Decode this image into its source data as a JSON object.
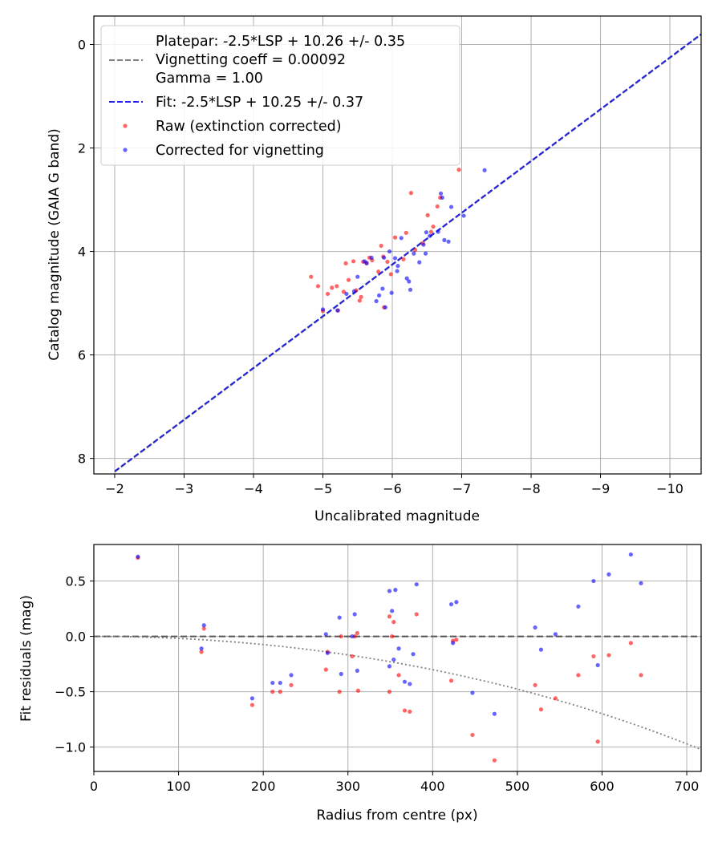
{
  "chart_data": [
    {
      "type": "scatter",
      "xlabel": "Uncalibrated magnitude",
      "ylabel": "Catalog magnitude (GAIA G band)",
      "xlim": [
        -1.7,
        -10.45
      ],
      "ylim": [
        8.3,
        -0.55
      ],
      "x_ticks": [
        -2,
        -3,
        -4,
        -5,
        -6,
        -7,
        -8,
        -9,
        -10
      ],
      "x_tick_labels": [
        "−2",
        "−3",
        "−4",
        "−5",
        "−6",
        "−7",
        "−8",
        "−9",
        "−10"
      ],
      "y_ticks": [
        0,
        2,
        4,
        6,
        8
      ],
      "y_tick_labels": [
        "0",
        "2",
        "4",
        "6",
        "8"
      ],
      "grid": true,
      "legend_position": "top-left",
      "legend": {
        "platepar_text": [
          "Platepar: -2.5*LSP + 10.26 +/- 0.35",
          "Vignetting coeff = 0.00092",
          "Gamma = 1.00"
        ],
        "fit_text": "Fit: -2.5*LSP + 10.25 +/- 0.37",
        "raw_text": "Raw (extinction corrected)",
        "corrected_text": "Corrected for vignetting"
      },
      "lines": [
        {
          "name": "Platepar: -2.5*LSP + 10.26 +/- 0.35",
          "style": "dashed",
          "color": "#808080",
          "intercept": 10.26
        },
        {
          "name": "Fit: -2.5*LSP + 10.25 +/- 0.37",
          "style": "dashed",
          "color": "#2222dd",
          "intercept": 10.25
        }
      ],
      "series": [
        {
          "name": "Raw (extinction corrected)",
          "color": "#ff0000",
          "points": [
            [
              -4.83,
              4.49
            ],
            [
              -4.93,
              4.67
            ],
            [
              -5.0,
              5.15
            ],
            [
              -5.07,
              4.82
            ],
            [
              -5.13,
              4.7
            ],
            [
              -5.2,
              4.67
            ],
            [
              -5.22,
              5.14
            ],
            [
              -5.3,
              4.78
            ],
            [
              -5.33,
              4.23
            ],
            [
              -5.37,
              4.55
            ],
            [
              -5.44,
              4.19
            ],
            [
              -5.48,
              4.75
            ],
            [
              -5.53,
              4.95
            ],
            [
              -5.55,
              4.88
            ],
            [
              -5.58,
              4.2
            ],
            [
              -5.63,
              4.22
            ],
            [
              -5.67,
              4.12
            ],
            [
              -5.71,
              4.17
            ],
            [
              -5.8,
              4.39
            ],
            [
              -5.84,
              3.89
            ],
            [
              -5.87,
              4.1
            ],
            [
              -5.88,
              5.08
            ],
            [
              -5.93,
              4.2
            ],
            [
              -5.98,
              4.44
            ],
            [
              -6.04,
              3.73
            ],
            [
              -6.16,
              4.15
            ],
            [
              -6.2,
              3.64
            ],
            [
              -6.27,
              2.87
            ],
            [
              -6.33,
              3.97
            ],
            [
              -6.44,
              3.84
            ],
            [
              -6.51,
              3.3
            ],
            [
              -6.56,
              3.62
            ],
            [
              -6.59,
              3.52
            ],
            [
              -6.65,
              3.13
            ],
            [
              -6.69,
              2.96
            ],
            [
              -6.96,
              2.42
            ]
          ]
        },
        {
          "name": "Corrected for vignetting",
          "color": "#0000ff",
          "points": [
            [
              -5.0,
              5.12
            ],
            [
              -5.21,
              5.14
            ],
            [
              -5.34,
              4.82
            ],
            [
              -5.45,
              4.77
            ],
            [
              -5.5,
              4.49
            ],
            [
              -5.6,
              4.19
            ],
            [
              -5.63,
              4.23
            ],
            [
              -5.7,
              4.12
            ],
            [
              -5.77,
              4.96
            ],
            [
              -5.81,
              4.85
            ],
            [
              -5.86,
              4.72
            ],
            [
              -5.88,
              4.12
            ],
            [
              -5.9,
              5.08
            ],
            [
              -5.96,
              4.0
            ],
            [
              -5.99,
              4.8
            ],
            [
              -6.04,
              4.13
            ],
            [
              -6.07,
              4.38
            ],
            [
              -6.08,
              4.28
            ],
            [
              -6.13,
              3.74
            ],
            [
              -6.21,
              4.52
            ],
            [
              -6.24,
              4.58
            ],
            [
              -6.26,
              4.74
            ],
            [
              -6.31,
              4.04
            ],
            [
              -6.39,
              4.21
            ],
            [
              -6.45,
              3.87
            ],
            [
              -6.48,
              4.04
            ],
            [
              -6.49,
              3.63
            ],
            [
              -6.54,
              3.7
            ],
            [
              -6.66,
              3.62
            ],
            [
              -6.7,
              2.88
            ],
            [
              -6.72,
              2.96
            ],
            [
              -6.75,
              3.78
            ],
            [
              -6.81,
              3.81
            ],
            [
              -6.85,
              3.14
            ],
            [
              -7.03,
              3.31
            ],
            [
              -7.33,
              2.43
            ]
          ]
        }
      ]
    },
    {
      "type": "scatter",
      "xlabel": "Radius from centre (px)",
      "ylabel": "Fit residuals (mag)",
      "xlim": [
        0,
        717
      ],
      "ylim": [
        -1.22,
        0.83
      ],
      "x_ticks": [
        0,
        100,
        200,
        300,
        400,
        500,
        600,
        700
      ],
      "x_tick_labels": [
        "0",
        "100",
        "200",
        "300",
        "400",
        "500",
        "600",
        "700"
      ],
      "y_ticks": [
        0.5,
        0.0,
        -0.5,
        -1.0
      ],
      "y_tick_labels": [
        "0.5",
        "0.0",
        "−0.5",
        "−1.0"
      ],
      "grid": true,
      "lines": [
        {
          "style": "dashed",
          "color": "#555555",
          "y": 0.0
        },
        {
          "style": "dotted",
          "color": "#808080",
          "vignetting_coeff": 0.00092
        }
      ],
      "series": [
        {
          "name": "Raw",
          "color": "#ff0000",
          "points": [
            [
              52,
              0.71
            ],
            [
              127,
              -0.14
            ],
            [
              130,
              0.07
            ],
            [
              187,
              -0.62
            ],
            [
              211,
              -0.5
            ],
            [
              220,
              -0.5
            ],
            [
              233,
              -0.44
            ],
            [
              274,
              -0.3
            ],
            [
              276,
              -0.14
            ],
            [
              290,
              -0.5
            ],
            [
              292,
              0.0
            ],
            [
              305,
              -0.18
            ],
            [
              308,
              0.0
            ],
            [
              311,
              0.03
            ],
            [
              312,
              -0.49
            ],
            [
              349,
              -0.5
            ],
            [
              349,
              0.18
            ],
            [
              352,
              0.0
            ],
            [
              354,
              0.13
            ],
            [
              360,
              -0.35
            ],
            [
              367,
              -0.67
            ],
            [
              373,
              -0.68
            ],
            [
              381,
              0.2
            ],
            [
              422,
              -0.4
            ],
            [
              424,
              -0.04
            ],
            [
              428,
              -0.03
            ],
            [
              447,
              -0.89
            ],
            [
              473,
              -1.12
            ],
            [
              521,
              -0.44
            ],
            [
              528,
              -0.66
            ],
            [
              545,
              -0.56
            ],
            [
              572,
              -0.35
            ],
            [
              590,
              -0.18
            ],
            [
              595,
              -0.95
            ],
            [
              608,
              -0.17
            ],
            [
              634,
              -0.06
            ],
            [
              646,
              -0.35
            ]
          ]
        },
        {
          "name": "Corrected",
          "color": "#0000ff",
          "points": [
            [
              52,
              0.72
            ],
            [
              127,
              -0.11
            ],
            [
              130,
              0.1
            ],
            [
              187,
              -0.56
            ],
            [
              211,
              -0.42
            ],
            [
              220,
              -0.42
            ],
            [
              233,
              -0.35
            ],
            [
              274,
              0.02
            ],
            [
              276,
              -0.15
            ],
            [
              290,
              0.17
            ],
            [
              292,
              -0.34
            ],
            [
              305,
              0.0
            ],
            [
              308,
              0.2
            ],
            [
              311,
              -0.31
            ],
            [
              349,
              0.41
            ],
            [
              349,
              -0.27
            ],
            [
              352,
              0.23
            ],
            [
              354,
              -0.21
            ],
            [
              356,
              0.42
            ],
            [
              360,
              -0.11
            ],
            [
              367,
              -0.41
            ],
            [
              373,
              -0.43
            ],
            [
              377,
              -0.16
            ],
            [
              381,
              0.47
            ],
            [
              422,
              0.29
            ],
            [
              424,
              -0.06
            ],
            [
              428,
              0.31
            ],
            [
              447,
              -0.51
            ],
            [
              473,
              -0.7
            ],
            [
              521,
              0.08
            ],
            [
              528,
              -0.12
            ],
            [
              545,
              0.02
            ],
            [
              572,
              0.27
            ],
            [
              590,
              0.5
            ],
            [
              595,
              -0.26
            ],
            [
              608,
              0.56
            ],
            [
              634,
              0.74
            ],
            [
              646,
              0.48
            ]
          ]
        }
      ]
    }
  ]
}
